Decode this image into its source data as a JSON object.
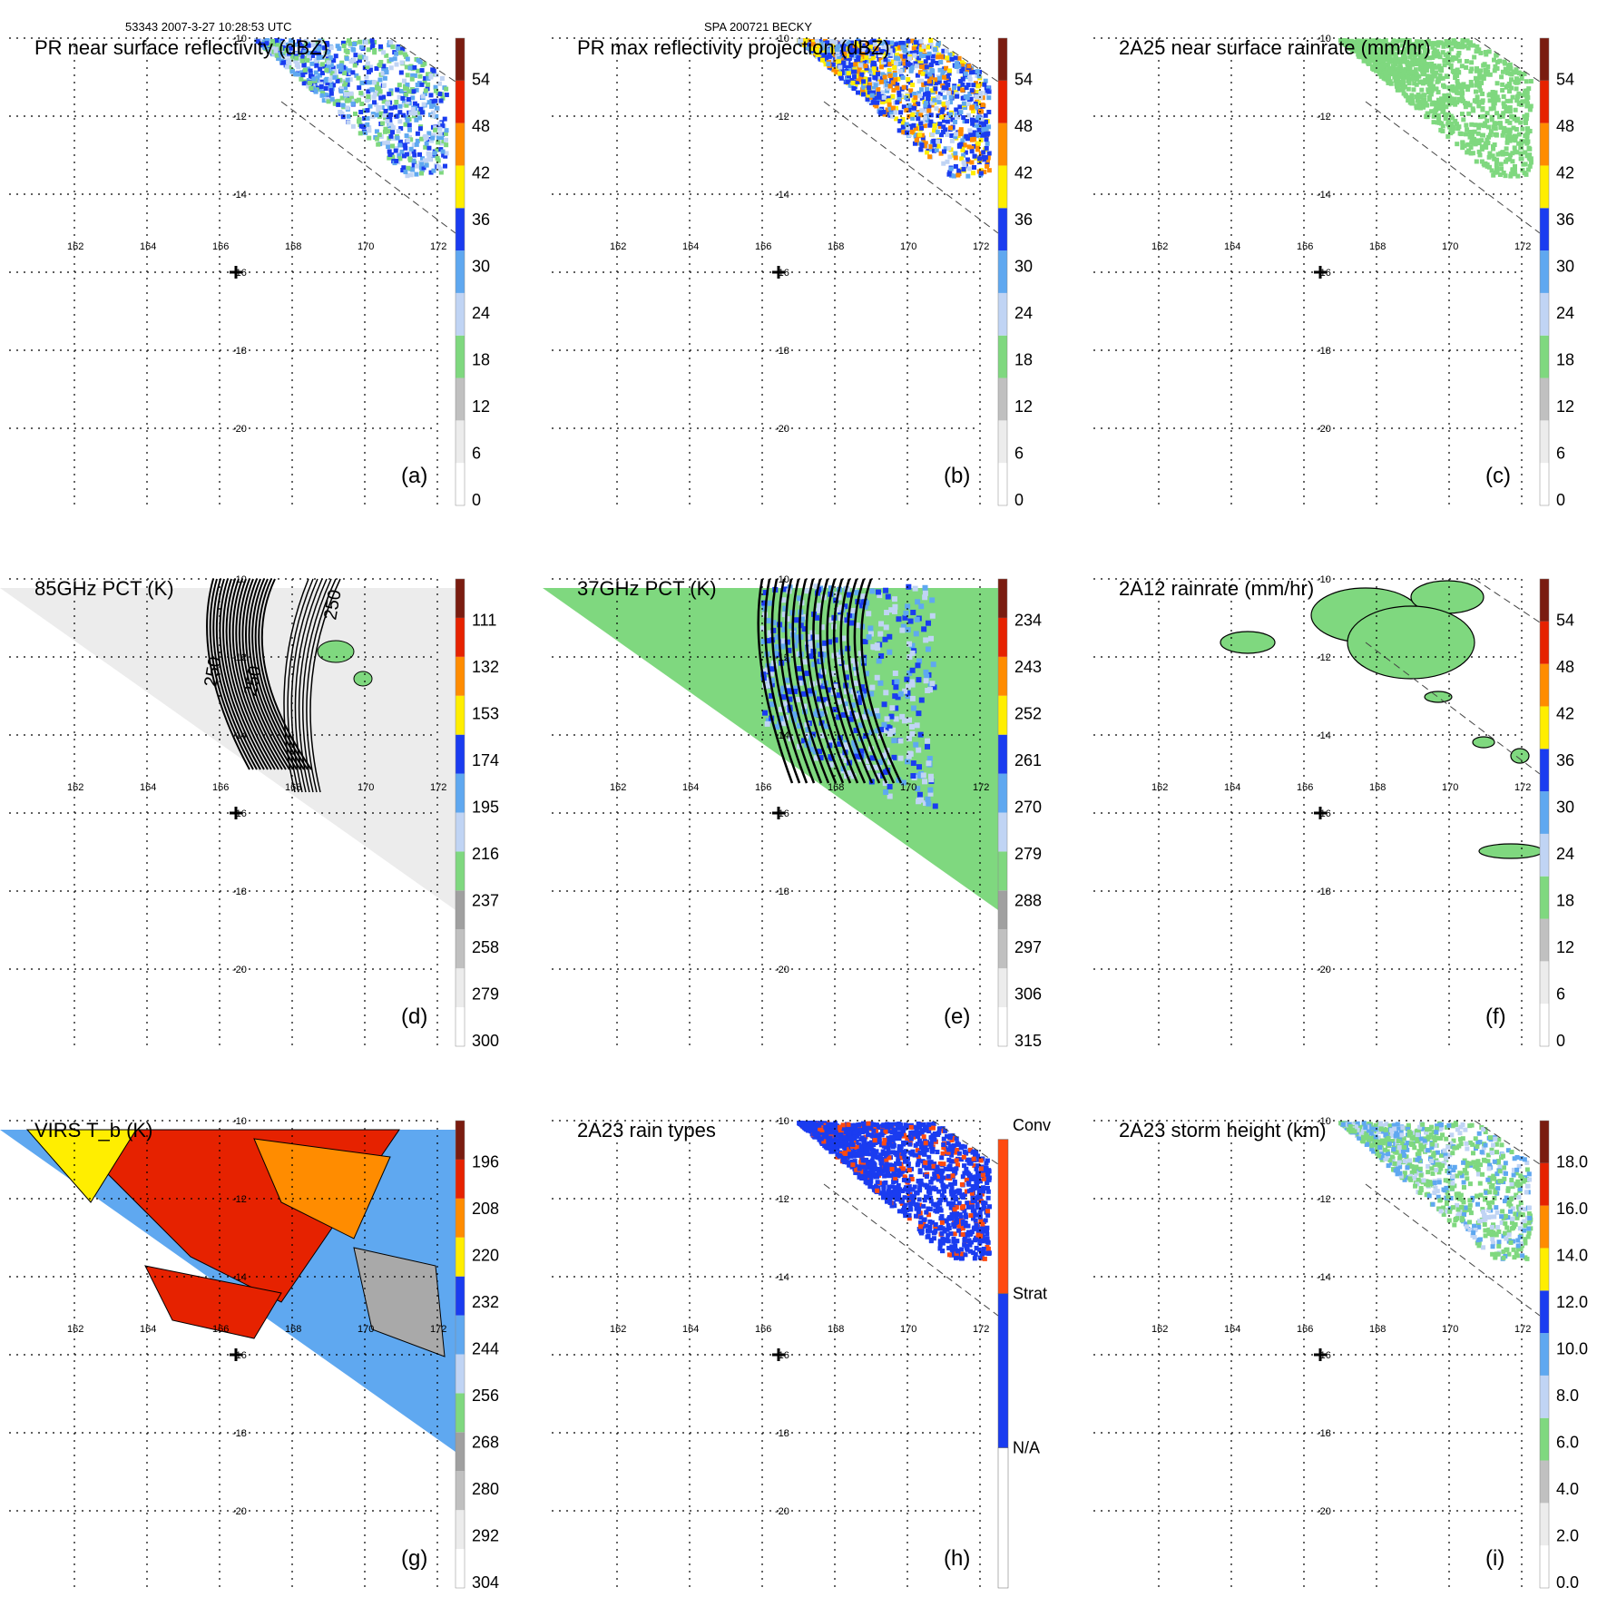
{
  "header": {
    "left": "53343 2007-3-27 10:28:53 UTC",
    "center": "SPA 200721 BECKY"
  },
  "lon_ticks": [
    "162",
    "164",
    "166",
    "168",
    "170",
    "172"
  ],
  "lat_ticks": [
    "-10",
    "-12",
    "-14",
    "-16",
    "-18",
    "-20"
  ],
  "colors": {
    "white": "#ffffff",
    "light_gray": "#d8d8d8",
    "gray": "#a9a9a9",
    "green": "#7fd87f",
    "light_blue": "#c0d4f4",
    "sky_blue": "#5fa8f0",
    "blue": "#1a3cf0",
    "yellow": "#ffee00",
    "orange": "#ff8c00",
    "red": "#e62200",
    "dark_red": "#7a1c10",
    "conv_orange": "#ff4a10"
  },
  "panels": [
    {
      "label": "(a)",
      "title": "PR near surface reflectivity (dBZ)",
      "colorbar": [
        "0",
        "6",
        "12",
        "18",
        "24",
        "30",
        "36",
        "42",
        "48",
        "54"
      ],
      "content": "swath_pr_ns"
    },
    {
      "label": "(b)",
      "title": "PR max reflectivity projection (dBZ)",
      "colorbar": [
        "0",
        "6",
        "12",
        "18",
        "24",
        "30",
        "36",
        "42",
        "48",
        "54"
      ],
      "content": "swath_pr_max"
    },
    {
      "label": "(c)",
      "title": "2A25 near surface rainrate (mm/hr)",
      "colorbar": [
        "0",
        "6",
        "12",
        "18",
        "24",
        "30",
        "36",
        "42",
        "48",
        "54"
      ],
      "content": "swath_rain"
    },
    {
      "label": "(d)",
      "title": "85GHz PCT (K)",
      "colorbar": [
        "300",
        "279",
        "258",
        "237",
        "216",
        "195",
        "174",
        "153",
        "132",
        "111"
      ],
      "content": "pct85",
      "contour_labels": [
        "250",
        "250",
        "250"
      ]
    },
    {
      "label": "(e)",
      "title": "37GHz PCT (K)",
      "colorbar": [
        "315",
        "306",
        "297",
        "288",
        "279",
        "270",
        "261",
        "252",
        "243",
        "234"
      ],
      "content": "pct37"
    },
    {
      "label": "(f)",
      "title": "2A12 rainrate (mm/hr)",
      "colorbar": [
        "0",
        "6",
        "12",
        "18",
        "24",
        "30",
        "36",
        "42",
        "48",
        "54"
      ],
      "content": "rain2a12"
    },
    {
      "label": "(g)",
      "title": "VIRS T_b (K)",
      "colorbar": [
        "304",
        "292",
        "280",
        "268",
        "256",
        "244",
        "232",
        "220",
        "208",
        "196"
      ],
      "content": "virs"
    },
    {
      "label": "(h)",
      "title": "2A23 rain types",
      "colorbar": [
        "N/A",
        "Strat",
        "Conv"
      ],
      "content": "raintypes"
    },
    {
      "label": "(i)",
      "title": "2A23 storm height (km)",
      "colorbar": [
        "0.0",
        "2.0",
        "4.0",
        "6.0",
        "8.0",
        "10.0",
        "12.0",
        "14.0",
        "16.0",
        "18.0"
      ],
      "content": "stormheight"
    }
  ]
}
